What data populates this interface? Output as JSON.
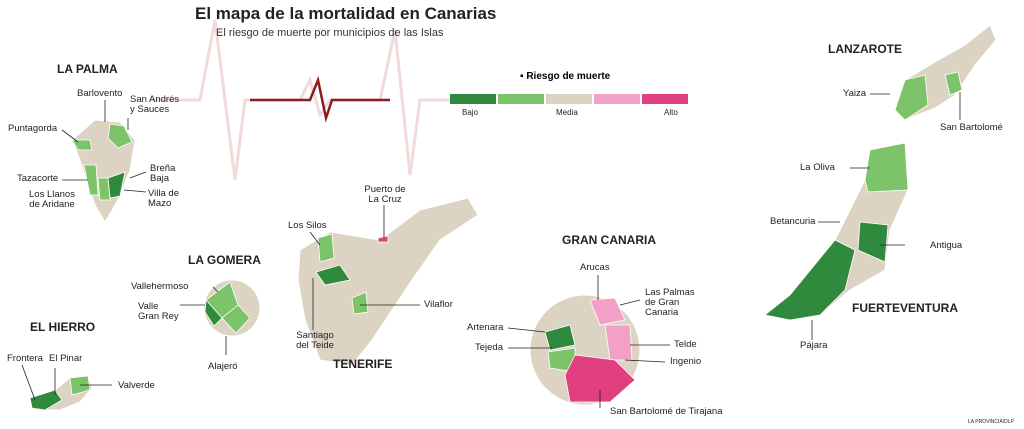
{
  "title": "El mapa de la mortalidad en Canarias",
  "subtitle": "El riesgo de muerte por municipios de las Islas",
  "legend": {
    "title": "Riesgo de muerte",
    "labels": [
      "Bajo",
      "Media",
      "Alto"
    ],
    "colors": [
      "#2f8a3e",
      "#7cc36a",
      "#dcd3c3",
      "#f3a0c8",
      "#e0407f"
    ]
  },
  "islands": [
    {
      "name": "LA PALMA",
      "municipalities": [
        "Barlovento",
        "San Andrés y Sauces",
        "Puntagorda",
        "Breña Baja",
        "Tazacorte",
        "Los Llanos de Aridane",
        "Villa de Mazo"
      ]
    },
    {
      "name": "LA GOMERA",
      "municipalities": [
        "Vallehermoso",
        "Valle Gran Rey",
        "Alajeró"
      ]
    },
    {
      "name": "EL HIERRO",
      "municipalities": [
        "Frontera",
        "El Pinar",
        "Valverde"
      ]
    },
    {
      "name": "TENERIFE",
      "municipalities": [
        "Los Silos",
        "Puerto de La Cruz",
        "Santiago del Teide",
        "Vilaflor"
      ]
    },
    {
      "name": "GRAN CANARIA",
      "municipalities": [
        "Arucas",
        "Las Palmas de Gran Canaria",
        "Artenara",
        "Tejeda",
        "Telde",
        "Ingenio",
        "San Bartolomé de Tirajana"
      ]
    },
    {
      "name": "LANZAROTE",
      "municipalities": [
        "Yaiza",
        "San Bartolomé"
      ]
    },
    {
      "name": "FUERTEVENTURA",
      "municipalities": [
        "La Oliva",
        "Betancuria",
        "Antigua",
        "Pájara"
      ]
    }
  ],
  "credit": "LA PROVINCIA/DLP"
}
